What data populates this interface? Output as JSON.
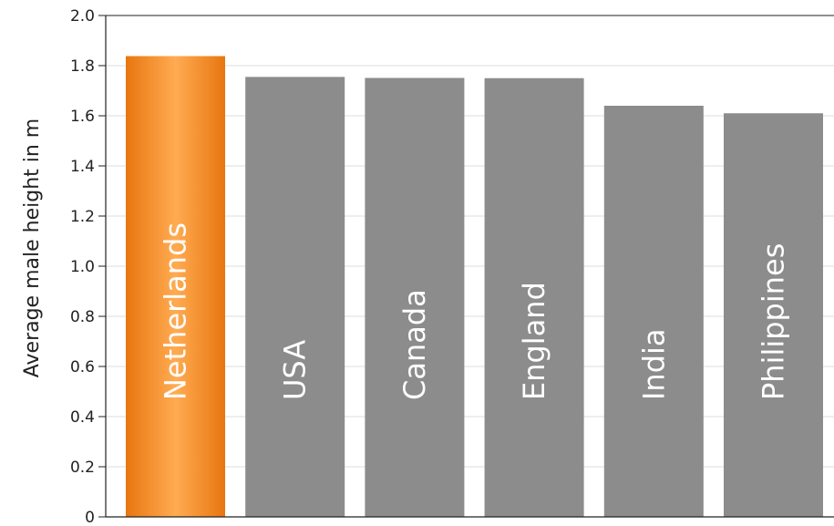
{
  "chart_data": {
    "type": "bar",
    "categories": [
      "Netherlands",
      "USA",
      "Canada",
      "England",
      "India",
      "Philippines"
    ],
    "values": [
      1.838,
      1.755,
      1.751,
      1.75,
      1.64,
      1.61
    ],
    "title": "",
    "xlabel": "",
    "ylabel": "Average male height in m",
    "ylim": [
      0,
      2.0
    ],
    "yticks": [
      "0",
      "0.2",
      "0.4",
      "0.6",
      "0.8",
      "1.0",
      "1.2",
      "1.4",
      "1.6",
      "1.8",
      "2.0"
    ],
    "grid": true,
    "highlight": "Netherlands",
    "colors": {
      "bar": "#8c8c8c",
      "highlight_dark": "#e8760f",
      "highlight_light": "#ffab52",
      "grid": "#dddddd",
      "axis": "#222222",
      "bar_label": "#ffffff"
    }
  }
}
